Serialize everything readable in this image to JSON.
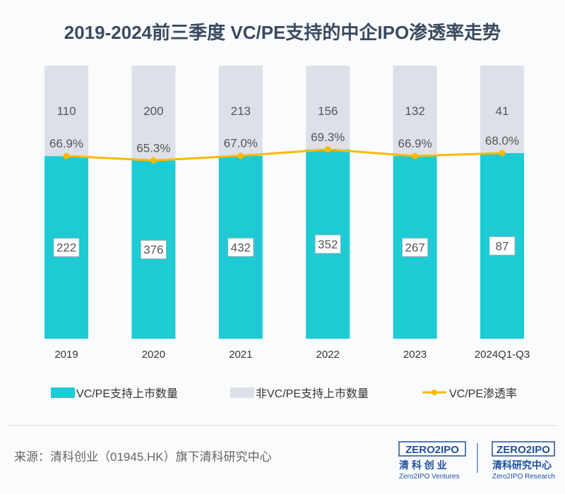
{
  "chart_data": {
    "type": "bar",
    "stacked": "100%",
    "title": "2019-2024前三季度 VC/PE支持的中企IPO渗透率走势",
    "categories": [
      "2019",
      "2020",
      "2021",
      "2022",
      "2023",
      "2024Q1-Q3"
    ],
    "series": [
      {
        "name": "VC/PE支持上市数量",
        "type": "bar",
        "color": "#1ecbd4",
        "values": [
          222,
          376,
          432,
          352,
          267,
          87
        ]
      },
      {
        "name": "非VC/PE支持上市数量",
        "type": "bar",
        "color": "#dde0e8",
        "values": [
          110,
          200,
          213,
          156,
          132,
          41
        ]
      },
      {
        "name": "VC/PE渗透率",
        "type": "line",
        "color": "#fbb900",
        "values": [
          66.9,
          65.3,
          67.0,
          69.3,
          66.9,
          68.0
        ],
        "labels": [
          "66.9%",
          "65.3%",
          "67.0%",
          "69.3%",
          "66.9%",
          "68.0%"
        ]
      }
    ],
    "legend": "bottom",
    "grid": false
  },
  "footer": {
    "source": "来源：清科创业（01945.HK）旗下清科研究中心",
    "logo1": {
      "brand": "ZERO2IPO",
      "cn": "清 科 创 业",
      "en": "Zero2IPO Ventures"
    },
    "logo2": {
      "brand": "ZERO2IPO",
      "cn": "清科研究中心",
      "en": "Zero2IPO Research"
    }
  }
}
